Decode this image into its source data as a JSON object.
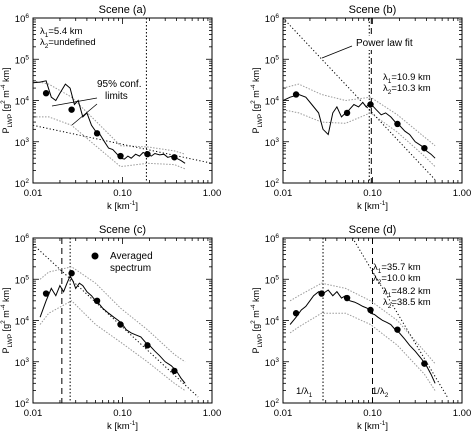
{
  "figure": {
    "x_ticks": [
      {
        "value": 0.01,
        "label": "0.01"
      },
      {
        "value": 0.1,
        "label": "0.10"
      },
      {
        "value": 1,
        "label": "1.00"
      }
    ],
    "y_ticks": [
      {
        "exp": 2,
        "base": "10",
        "sup": "2"
      },
      {
        "exp": 3,
        "base": "10",
        "sup": "3"
      },
      {
        "exp": 4,
        "base": "10",
        "sup": "4"
      },
      {
        "exp": 5,
        "base": "10",
        "sup": "5"
      },
      {
        "exp": 6,
        "base": "10",
        "sup": "6"
      }
    ],
    "xlabel": {
      "main": "k [km",
      "sup": "-1",
      "end": "]"
    },
    "ylabel": {
      "main": "P",
      "sub": "LWP",
      "unit": " [g",
      "s1": "2",
      "m1": " m",
      "s2": "-4",
      "m2": " km]"
    }
  },
  "chart_data": [
    {
      "type": "line",
      "title": "Scene (a)",
      "xlim": [
        0.01,
        1.0
      ],
      "ylim": [
        100,
        1000000
      ],
      "xscale": "log",
      "yscale": "log",
      "lambda1": {
        "prefix": "λ",
        "sub": "1",
        "text": "=5.4 km"
      },
      "lambda2": {
        "prefix": "λ",
        "sub": "2",
        "text": "=undefined"
      },
      "annotation": {
        "line1": "95% conf.",
        "line2": "limits"
      },
      "spectrum": {
        "x": [
          0.01,
          0.012,
          0.014,
          0.016,
          0.018,
          0.02,
          0.023,
          0.026,
          0.029,
          0.032,
          0.036,
          0.04,
          0.045,
          0.05,
          0.056,
          0.063,
          0.07,
          0.078,
          0.087,
          0.095,
          0.105,
          0.115,
          0.125,
          0.14,
          0.155,
          0.17,
          0.19,
          0.21,
          0.23,
          0.26,
          0.29,
          0.32,
          0.36,
          0.4,
          0.45,
          0.5
        ],
        "y": [
          27000,
          28000,
          30000,
          12000,
          10000,
          15000,
          25000,
          20000,
          8000,
          10000,
          4000,
          5000,
          2500,
          1800,
          1500,
          1000,
          700,
          650,
          500,
          400,
          380,
          450,
          400,
          500,
          450,
          550,
          500,
          450,
          520,
          480,
          500,
          420,
          450,
          400,
          350,
          300
        ]
      },
      "averaged": {
        "x": [
          0.014,
          0.027,
          0.052,
          0.095,
          0.19,
          0.38
        ],
        "y": [
          15000,
          6000,
          1600,
          450,
          500,
          420
        ]
      },
      "conf_upper": {
        "x": [
          0.01,
          0.015,
          0.027,
          0.05,
          0.095,
          0.19,
          0.38,
          0.5
        ],
        "y": [
          30000,
          25000,
          12000,
          3200,
          800,
          750,
          600,
          500
        ]
      },
      "conf_lower": {
        "x": [
          0.01,
          0.015,
          0.027,
          0.05,
          0.095,
          0.19,
          0.38,
          0.5
        ],
        "y": [
          4000,
          4000,
          2500,
          800,
          250,
          300,
          280,
          220
        ]
      },
      "fit": {
        "x": [
          0.01,
          1.0
        ],
        "y": [
          2500,
          300
        ]
      },
      "vlines": [
        {
          "x": 0.185,
          "style": "dotted"
        }
      ]
    },
    {
      "type": "line",
      "title": "Scene (b)",
      "xlim": [
        0.01,
        1.0
      ],
      "ylim": [
        100,
        1000000
      ],
      "xscale": "log",
      "yscale": "log",
      "lambda1": {
        "prefix": "λ",
        "sub": "1",
        "text": "=10.9 km"
      },
      "lambda2": {
        "prefix": "λ",
        "sub": "2",
        "text": "=10.3 km"
      },
      "annotation": {
        "line1": "Power law fit",
        "line2": ""
      },
      "spectrum": {
        "x": [
          0.01,
          0.012,
          0.015,
          0.018,
          0.021,
          0.025,
          0.028,
          0.032,
          0.036,
          0.04,
          0.045,
          0.05,
          0.055,
          0.062,
          0.07,
          0.078,
          0.085,
          0.092,
          0.1,
          0.11,
          0.125,
          0.14,
          0.16,
          0.18,
          0.2,
          0.23,
          0.26,
          0.3,
          0.35,
          0.4,
          0.45,
          0.5
        ],
        "y": [
          10000,
          12000,
          14000,
          12000,
          8000,
          5000,
          2000,
          1500,
          5000,
          7000,
          4000,
          5000,
          6000,
          8000,
          7000,
          9000,
          7000,
          8500,
          7500,
          6000,
          4500,
          5000,
          4000,
          3000,
          2500,
          1800,
          1500,
          1000,
          800,
          600,
          500,
          400
        ]
      },
      "averaged": {
        "x": [
          0.014,
          0.052,
          0.095,
          0.19,
          0.38
        ],
        "y": [
          14000,
          5000,
          8000,
          2700,
          700
        ]
      },
      "conf_upper": {
        "x": [
          0.01,
          0.015,
          0.027,
          0.05,
          0.095,
          0.19,
          0.38,
          0.5
        ],
        "y": [
          20000,
          25000,
          14000,
          10000,
          12000,
          4500,
          1300,
          800
        ]
      },
      "conf_lower": {
        "x": [
          0.01,
          0.015,
          0.027,
          0.05,
          0.095,
          0.19,
          0.38,
          0.5
        ],
        "y": [
          6000,
          5000,
          3000,
          2800,
          5000,
          1700,
          450,
          250
        ]
      },
      "fit": {
        "x": [
          0.01,
          0.5
        ],
        "y": [
          1000000,
          120
        ]
      },
      "vlines": [
        {
          "x": 0.092,
          "style": "dotted"
        },
        {
          "x": 0.097,
          "style": "dashed"
        }
      ]
    },
    {
      "type": "line",
      "title": "Scene (c)",
      "xlim": [
        0.01,
        1.0
      ],
      "ylim": [
        100,
        1000000
      ],
      "xscale": "log",
      "yscale": "log",
      "lambda1": {
        "prefix": "λ",
        "sub": "1",
        "text": "=48.2 km"
      },
      "lambda2": {
        "prefix": "λ",
        "sub": "2",
        "text": "=38.5 km"
      },
      "annotation": {
        "line1": "Averaged",
        "line2": "spectrum"
      },
      "spectrum": {
        "x": [
          0.012,
          0.014,
          0.016,
          0.018,
          0.02,
          0.022,
          0.024,
          0.026,
          0.028,
          0.03,
          0.033,
          0.036,
          0.04,
          0.045,
          0.05,
          0.055,
          0.06,
          0.07,
          0.08,
          0.09,
          0.1,
          0.11,
          0.125,
          0.14,
          0.16,
          0.18,
          0.2,
          0.23,
          0.26,
          0.3,
          0.35,
          0.4,
          0.45,
          0.5
        ],
        "y": [
          12000,
          30000,
          60000,
          40000,
          70000,
          50000,
          80000,
          120000,
          90000,
          60000,
          80000,
          70000,
          50000,
          40000,
          30000,
          25000,
          20000,
          15000,
          12000,
          10000,
          8000,
          6000,
          5000,
          4500,
          4000,
          3000,
          2500,
          1800,
          1400,
          1000,
          800,
          600,
          400,
          300
        ]
      },
      "averaged": {
        "x": [
          0.014,
          0.027,
          0.052,
          0.095,
          0.19,
          0.38
        ],
        "y": [
          45000,
          140000,
          30000,
          8000,
          2500,
          600
        ]
      },
      "conf_upper": {
        "x": [
          0.012,
          0.015,
          0.027,
          0.05,
          0.095,
          0.19,
          0.38,
          0.5
        ],
        "y": [
          100000,
          150000,
          200000,
          80000,
          20000,
          6000,
          1500,
          1000
        ]
      },
      "conf_lower": {
        "x": [
          0.012,
          0.015,
          0.027,
          0.05,
          0.095,
          0.19,
          0.38,
          0.5
        ],
        "y": [
          8000,
          15000,
          30000,
          8000,
          3000,
          1000,
          300,
          200
        ]
      },
      "fit": {
        "x": [
          0.01,
          0.7
        ],
        "y": [
          700000,
          140
        ]
      },
      "vlines": [
        {
          "x": 0.021,
          "style": "dashed"
        },
        {
          "x": 0.026,
          "style": "dotted"
        }
      ]
    },
    {
      "type": "line",
      "title": "Scene (d)",
      "xlim": [
        0.01,
        1.0
      ],
      "ylim": [
        100,
        1000000
      ],
      "xscale": "log",
      "yscale": "log",
      "lambda1": {
        "prefix": "λ",
        "sub": "1",
        "text": "=35.7 km"
      },
      "lambda2": {
        "prefix": "λ",
        "sub": "2",
        "text": "=10.0 km"
      },
      "annotation": {
        "line1": "",
        "line2": ""
      },
      "k1_label": {
        "pre": "1/λ",
        "sub": "1"
      },
      "k2_label": {
        "pre": "1/λ",
        "sub": "2"
      },
      "spectrum": {
        "x": [
          0.012,
          0.014,
          0.016,
          0.018,
          0.02,
          0.022,
          0.025,
          0.028,
          0.032,
          0.036,
          0.04,
          0.045,
          0.05,
          0.056,
          0.063,
          0.07,
          0.078,
          0.087,
          0.095,
          0.105,
          0.115,
          0.13,
          0.145,
          0.16,
          0.18,
          0.2,
          0.23,
          0.26,
          0.3,
          0.35,
          0.4,
          0.45,
          0.5
        ],
        "y": [
          8000,
          12000,
          18000,
          22000,
          30000,
          40000,
          50000,
          45000,
          55000,
          40000,
          50000,
          35000,
          40000,
          30000,
          28000,
          25000,
          22000,
          20000,
          15000,
          14000,
          12000,
          10000,
          9000,
          8000,
          6000,
          5000,
          3500,
          2500,
          1800,
          1200,
          800,
          500,
          300
        ]
      },
      "averaged": {
        "x": [
          0.014,
          0.027,
          0.052,
          0.095,
          0.19,
          0.38
        ],
        "y": [
          15000,
          45000,
          35000,
          18000,
          6000,
          900
        ]
      },
      "conf_upper": {
        "x": [
          0.012,
          0.015,
          0.027,
          0.05,
          0.095,
          0.19,
          0.38,
          0.5
        ],
        "y": [
          30000,
          40000,
          80000,
          60000,
          30000,
          10000,
          1800,
          900
        ]
      },
      "conf_lower": {
        "x": [
          0.012,
          0.015,
          0.027,
          0.05,
          0.095,
          0.19,
          0.38,
          0.5
        ],
        "y": [
          5000,
          7000,
          15000,
          15000,
          8000,
          2500,
          500,
          200
        ]
      },
      "fit": {
        "x": [
          0.06,
          0.7
        ],
        "y": [
          1000000,
          130
        ]
      },
      "vlines": [
        {
          "x": 0.028,
          "style": "dotted"
        },
        {
          "x": 0.1,
          "style": "dashed"
        }
      ]
    }
  ]
}
